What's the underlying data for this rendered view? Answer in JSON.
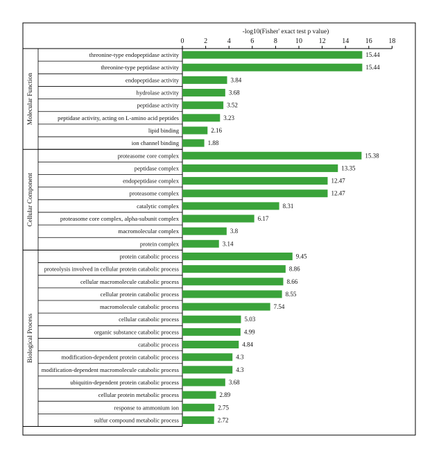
{
  "colors": {
    "bar": "#3aa33a",
    "line": "#000000",
    "background": "#ffffff"
  },
  "chart_data": {
    "type": "bar",
    "orientation": "horizontal",
    "title": "",
    "xlabel": "-log10(Fisher' exact test p value)",
    "xlim": [
      0,
      18
    ],
    "xticks": [
      0,
      2,
      4,
      6,
      8,
      10,
      12,
      14,
      16,
      18
    ],
    "xaxis_position": "top",
    "grid": false,
    "legend": "none",
    "groups": [
      {
        "name": "Molecular Function",
        "categories": [
          "threonine-type endopeptidase activity",
          "threonine-type peptidase activity",
          "endopeptidase activity",
          "hydrolase activity",
          "peptidase activity",
          "peptidase activity, acting on L-amino acid peptides",
          "lipid binding",
          "ion channel binding"
        ],
        "values": [
          15.44,
          15.44,
          3.84,
          3.68,
          3.52,
          3.23,
          2.16,
          1.88
        ],
        "value_labels": [
          "15.44",
          "15.44",
          "3.84",
          "3.68",
          "3.52",
          "3.23",
          "2.16",
          "1.88"
        ]
      },
      {
        "name": "Cellular Component",
        "categories": [
          "proteasome core complex",
          "peptidase complex",
          "endopeptidase complex",
          "proteasome complex",
          "catalytic complex",
          "proteasome core complex, alpha-subunit complex",
          "macromolecular complex",
          "protein complex"
        ],
        "values": [
          15.38,
          13.35,
          12.47,
          12.47,
          8.31,
          6.17,
          3.8,
          3.14
        ],
        "value_labels": [
          "15.38",
          "13.35",
          "12.47",
          "12.47",
          "8.31",
          "6.17",
          "3.8",
          "3.14"
        ]
      },
      {
        "name": "Biological Process",
        "categories": [
          "protein catabolic process",
          "proteolysis involved in cellular protein catabolic process",
          "cellular macromolecule catabolic process",
          "cellular protein catabolic process",
          "macromolecule catabolic process",
          "cellular catabolic process",
          "organic substance catabolic process",
          "catabolic process",
          "modification-dependent protein catabolic process",
          "modification-dependent macromolecule catabolic process",
          "ubiquitin-dependent protein catabolic process",
          "cellular protein metabolic process",
          "response to ammonium ion",
          "sulfur compound metabolic process"
        ],
        "values": [
          9.45,
          8.86,
          8.66,
          8.55,
          7.54,
          5.03,
          4.99,
          4.84,
          4.3,
          4.3,
          3.68,
          2.89,
          2.75,
          2.72
        ],
        "value_labels": [
          "9.45",
          "8.86",
          "8.66",
          "8.55",
          "7.54",
          "5.03",
          "4.99",
          "4.84",
          "4.3",
          "4.3",
          "3.68",
          "2.89",
          "2.75",
          "2.72"
        ]
      }
    ]
  }
}
